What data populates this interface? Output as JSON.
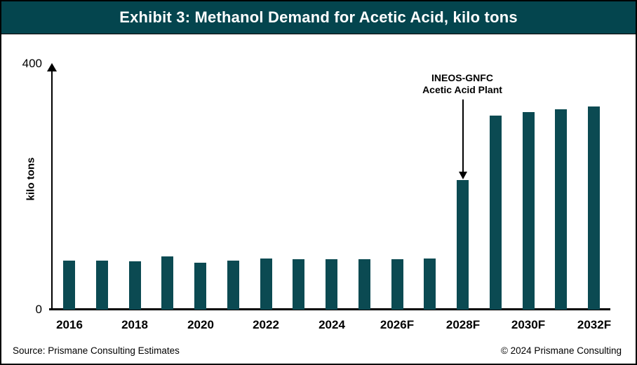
{
  "header": {
    "title": "Exhibit 3: Methanol Demand for Acetic Acid, kilo tons",
    "bg_color": "#04454E",
    "text_color": "#FFFFFF"
  },
  "chart_data": {
    "type": "bar",
    "title": "Exhibit 3: Methanol Demand for Acetic Acid, kilo tons",
    "categories": [
      "2016",
      "2017",
      "2018",
      "2019",
      "2020",
      "2021",
      "2022",
      "2023",
      "2024",
      "2025F",
      "2026F",
      "2027F",
      "2028F",
      "2029F",
      "2030F",
      "2031F",
      "2032F"
    ],
    "values": [
      80,
      79,
      78,
      86,
      76,
      79,
      83,
      82,
      82,
      82,
      82,
      83,
      210,
      315,
      320,
      325,
      330
    ],
    "xlabel": "",
    "ylabel": "kilo tons",
    "ylim": [
      0,
      400
    ],
    "ytick_labels": [
      "400",
      "0"
    ],
    "visible_x_ticks": [
      "2016",
      "2018",
      "2020",
      "2022",
      "2024",
      "2026F",
      "2028F",
      "2030F",
      "2032F"
    ],
    "bar_color": "#0B4A52",
    "grid": false,
    "legend": false,
    "annotation": {
      "lines": [
        "INEOS-GNFC",
        "Acetic Acid Plant"
      ],
      "target_category": "2028F"
    }
  },
  "footer": {
    "source": "Source: Prismane Consulting Estimates",
    "copyright": "© 2024 Prismane Consulting"
  }
}
